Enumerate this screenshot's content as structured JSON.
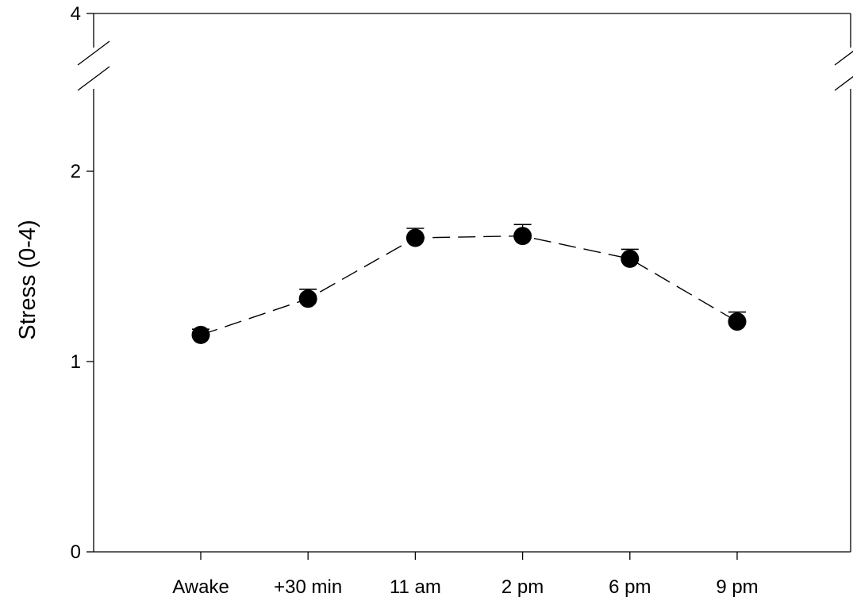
{
  "chart_data": {
    "type": "line",
    "title": "",
    "xlabel": "",
    "ylabel": "Stress (0-4)",
    "categories": [
      "Awake",
      "+30 min",
      "11 am",
      "2 pm",
      "6 pm",
      "9 pm"
    ],
    "series": [
      {
        "values": [
          1.14,
          1.33,
          1.65,
          1.66,
          1.54,
          1.21
        ],
        "error_upper": [
          0.03,
          0.05,
          0.05,
          0.06,
          0.05,
          0.05
        ]
      }
    ],
    "y_ticks": [
      0,
      1,
      2,
      4
    ],
    "ylim": [
      0,
      4
    ],
    "y_axis_break": {
      "from": 2.5,
      "to": 3.9
    },
    "grid": false,
    "legend": "none",
    "colors": {
      "line": "#000000",
      "marker": "#000000",
      "axis": "#000000"
    }
  }
}
